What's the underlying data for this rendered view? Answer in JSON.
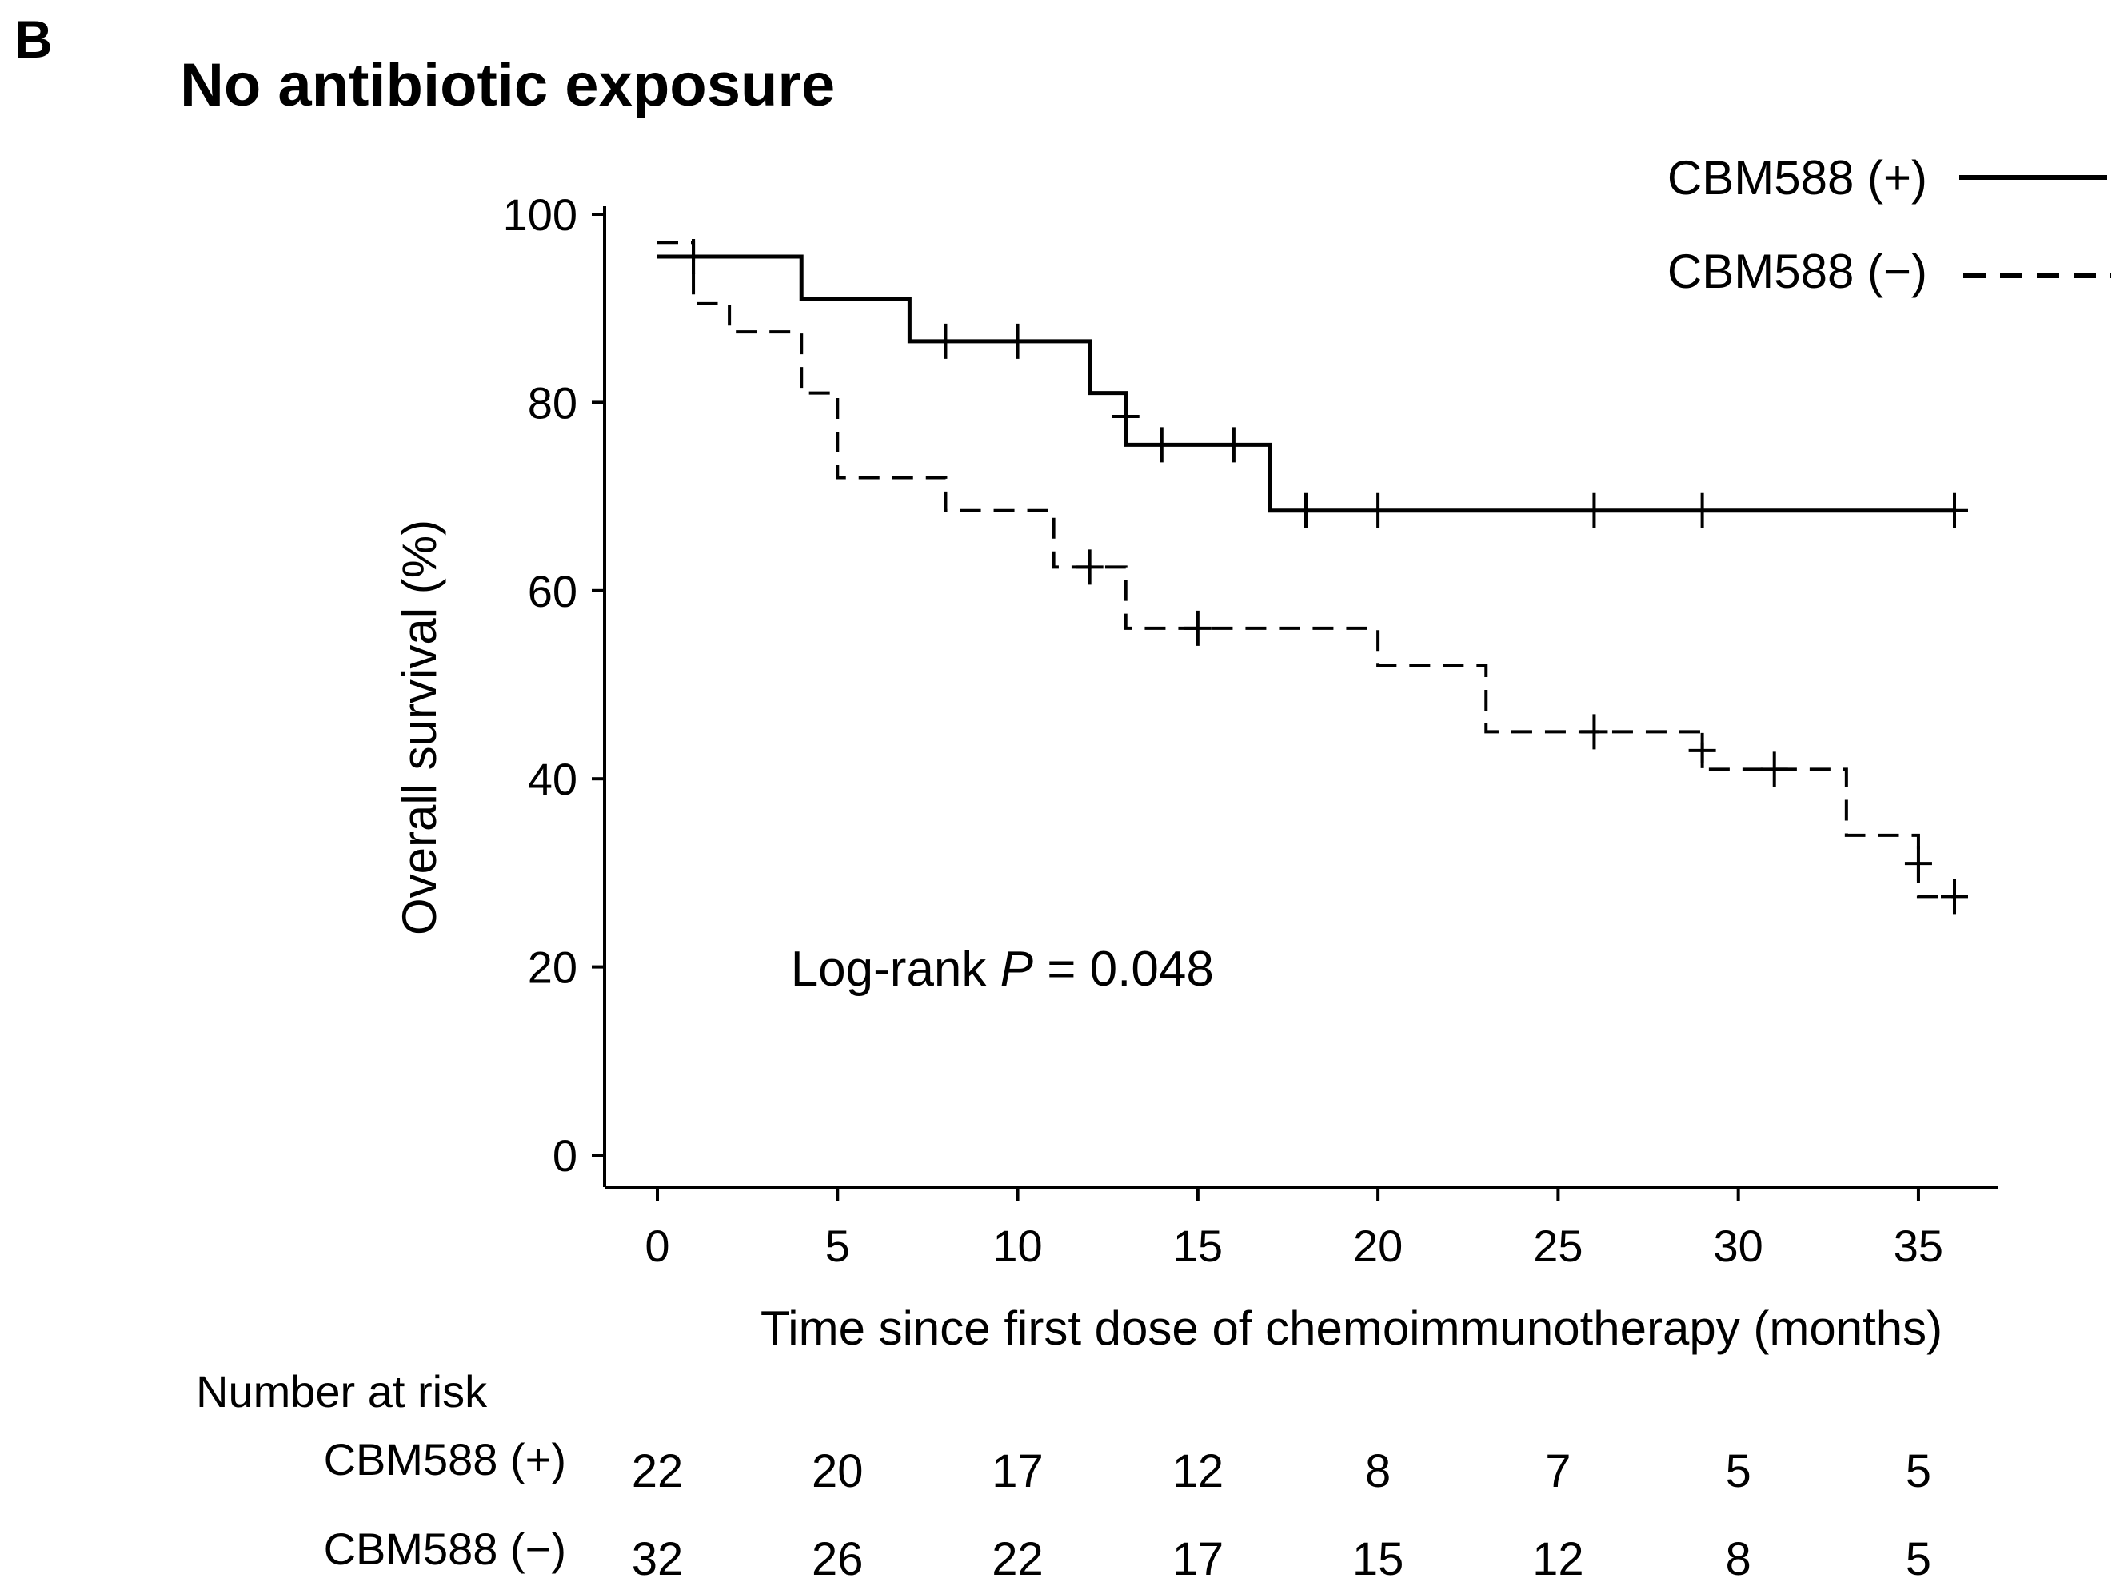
{
  "panel_letter": "B",
  "chart_data": {
    "type": "line",
    "subtype": "kaplan-meier",
    "title": "No antibiotic exposure",
    "xlabel": "Time since first dose of chemoimmunotherapy (months)",
    "ylabel": "Overall survival (%)",
    "xlim": [
      -1.5,
      37.5
    ],
    "ylim": [
      -3.5,
      100
    ],
    "xticks": [
      0,
      5,
      10,
      15,
      20,
      25,
      30,
      35
    ],
    "yticks": [
      0,
      20,
      40,
      60,
      80,
      100
    ],
    "annotation": {
      "text_prefix": "Log-rank ",
      "p_symbol": "P",
      "text_suffix": " = 0.048",
      "x": 3.7,
      "y": 18
    },
    "legend_position": "top-right",
    "series": [
      {
        "name": "CBM588 (+)",
        "style": "solid",
        "steps": [
          [
            0,
            95.5
          ],
          [
            4,
            91
          ],
          [
            7,
            86.5
          ],
          [
            12,
            81
          ],
          [
            13,
            75.5
          ],
          [
            17,
            68.5
          ],
          [
            36,
            68.5
          ]
        ],
        "censored": [
          [
            1,
            95.5
          ],
          [
            8,
            86.5
          ],
          [
            10,
            86.5
          ],
          [
            13,
            78.5
          ],
          [
            14,
            75.5
          ],
          [
            16,
            75.5
          ],
          [
            18,
            68.5
          ],
          [
            20,
            68.5
          ],
          [
            26,
            68.5
          ],
          [
            29,
            68.5
          ],
          [
            36,
            68.5
          ]
        ]
      },
      {
        "name": "CBM588 (−)",
        "style": "dashed",
        "steps": [
          [
            0,
            97
          ],
          [
            1,
            90.5
          ],
          [
            2,
            87.5
          ],
          [
            4,
            81
          ],
          [
            5,
            72
          ],
          [
            8,
            68.5
          ],
          [
            11,
            62.5
          ],
          [
            13,
            56
          ],
          [
            20,
            52
          ],
          [
            23,
            45
          ],
          [
            29,
            41
          ],
          [
            33,
            34
          ],
          [
            35,
            27.5
          ],
          [
            36,
            27.5
          ]
        ],
        "censored": [
          [
            1,
            95.5
          ],
          [
            12,
            62.5
          ],
          [
            15,
            56
          ],
          [
            26,
            45
          ],
          [
            29,
            43
          ],
          [
            31,
            41
          ],
          [
            35,
            31
          ],
          [
            36,
            27.5
          ]
        ]
      }
    ]
  },
  "risk_table": {
    "heading": "Number at risk",
    "rows": [
      {
        "label": "CBM588 (+)",
        "values": [
          "22",
          "20",
          "17",
          "12",
          "8",
          "7",
          "5",
          "5"
        ]
      },
      {
        "label": "CBM588 (−)",
        "values": [
          "32",
          "26",
          "22",
          "17",
          "15",
          "12",
          "8",
          "5"
        ]
      }
    ]
  }
}
